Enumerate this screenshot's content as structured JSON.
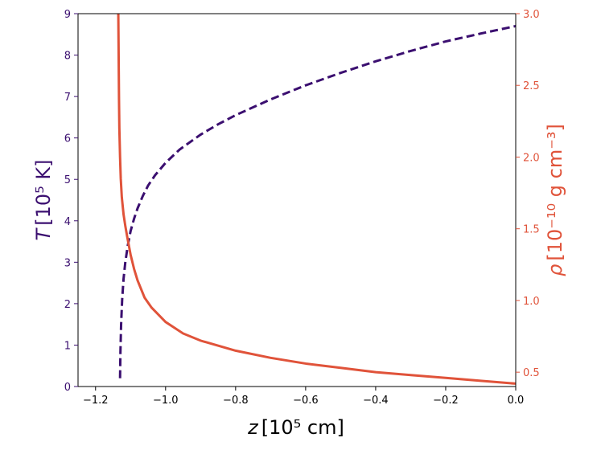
{
  "chart_data": {
    "type": "line",
    "colors": {
      "temperature": "#3b0f70",
      "density": "#e0533a",
      "axes": "#000000"
    },
    "x": {
      "label_main": "z",
      "label_unit": "[10⁵ cm]",
      "lim": [
        -1.25,
        0.0
      ],
      "ticks": [
        -1.2,
        -1.0,
        -0.8,
        -0.6,
        -0.4,
        -0.2,
        0.0
      ],
      "tick_labels": [
        "−1.2",
        "−1.0",
        "−0.8",
        "−0.6",
        "−0.4",
        "−0.2",
        "0.0"
      ]
    },
    "y_left": {
      "label_main": "T",
      "label_unit": "[10⁵ K]",
      "lim": [
        0,
        9
      ],
      "ticks": [
        0,
        1,
        2,
        3,
        4,
        5,
        6,
        7,
        8,
        9
      ],
      "tick_labels": [
        "0",
        "1",
        "2",
        "3",
        "4",
        "5",
        "6",
        "7",
        "8",
        "9"
      ]
    },
    "y_right": {
      "label_main": "ρ",
      "label_unit": "[10⁻¹⁰ g cm⁻³]",
      "lim": [
        0.4,
        3.0
      ],
      "ticks": [
        0.5,
        1.0,
        1.5,
        2.0,
        2.5,
        3.0
      ],
      "tick_labels": [
        "0.5",
        "1.0",
        "1.5",
        "2.0",
        "2.5",
        "3.0"
      ]
    },
    "series": [
      {
        "axis": "left",
        "style": "dashed",
        "color": "#3b0f70",
        "x": [
          -1.13,
          -1.129,
          -1.127,
          -1.124,
          -1.12,
          -1.115,
          -1.108,
          -1.1,
          -1.09,
          -1.08,
          -1.065,
          -1.05,
          -1.03,
          -1.0,
          -0.96,
          -0.9,
          -0.85,
          -0.8,
          -0.7,
          -0.6,
          -0.5,
          -0.4,
          -0.3,
          -0.2,
          -0.1,
          0.0
        ],
        "y": [
          0.2,
          0.8,
          1.5,
          2.1,
          2.6,
          3.0,
          3.4,
          3.75,
          4.05,
          4.3,
          4.6,
          4.85,
          5.1,
          5.4,
          5.72,
          6.08,
          6.33,
          6.55,
          6.93,
          7.27,
          7.57,
          7.85,
          8.1,
          8.33,
          8.52,
          8.7
        ]
      },
      {
        "axis": "right",
        "style": "solid",
        "color": "#e0533a",
        "x": [
          -1.135,
          -1.134,
          -1.133,
          -1.132,
          -1.13,
          -1.128,
          -1.125,
          -1.12,
          -1.115,
          -1.11,
          -1.1,
          -1.09,
          -1.08,
          -1.06,
          -1.04,
          -1.0,
          -0.95,
          -0.9,
          -0.8,
          -0.7,
          -0.6,
          -0.5,
          -0.4,
          -0.3,
          -0.2,
          -0.1,
          0.0
        ],
        "y": [
          3.0,
          2.7,
          2.4,
          2.2,
          2.0,
          1.85,
          1.72,
          1.6,
          1.52,
          1.45,
          1.32,
          1.22,
          1.14,
          1.02,
          0.95,
          0.85,
          0.77,
          0.72,
          0.65,
          0.6,
          0.56,
          0.53,
          0.5,
          0.48,
          0.46,
          0.44,
          0.42
        ]
      }
    ]
  }
}
